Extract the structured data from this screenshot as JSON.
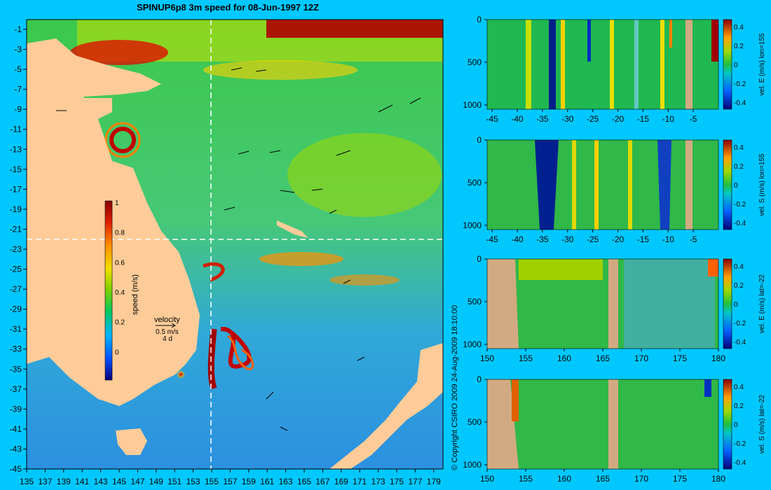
{
  "title": "SPINUP6p8 3m speed for 08-Jun-1997 12Z",
  "copyright": "© Copyright CSIRO 2009   24-Aug-2009 18:10:00",
  "colors": {
    "background": "#00c8ff",
    "land": "#ffcc99",
    "section_land": "#d2aa82"
  },
  "main_map": {
    "lon_ticks": [
      "135",
      "137",
      "139",
      "141",
      "143",
      "145",
      "147",
      "149",
      "151",
      "153",
      "155",
      "157",
      "159",
      "161",
      "163",
      "165",
      "167",
      "169",
      "171",
      "173",
      "175",
      "177",
      "179"
    ],
    "lat_ticks": [
      "-1",
      "-3",
      "-5",
      "-7",
      "-9",
      "-11",
      "-13",
      "-15",
      "-17",
      "-19",
      "-21",
      "-23",
      "-25",
      "-27",
      "-29",
      "-31",
      "-33",
      "-35",
      "-37",
      "-39",
      "-41",
      "-43",
      "-45"
    ],
    "lon_range": [
      135,
      180
    ],
    "lat_range": [
      -45,
      0
    ],
    "section_lon": 155,
    "section_lat": -22,
    "colorbar": {
      "label": "speed (m/s)",
      "ticks": [
        "1",
        "0.8",
        "0.6",
        "0.4",
        "0.2",
        "0"
      ],
      "range": [
        -0.2,
        1.0
      ]
    },
    "velocity_legend": {
      "title": "velocity",
      "scale": "0.5 m/s",
      "interval": "4 d"
    }
  },
  "sections": [
    {
      "id": "lon155-east",
      "label": "vel. E (m/s) lon=155",
      "x_ticks": [
        "-45",
        "-40",
        "-35",
        "-30",
        "-25",
        "-20",
        "-15",
        "-10",
        "-5"
      ],
      "x_range": [
        -46,
        0
      ],
      "y_ticks": [
        "0",
        "500",
        "1000"
      ],
      "colorbar_ticks": [
        "0.4",
        "0.2",
        "0",
        "-0.2",
        "-0.4"
      ]
    },
    {
      "id": "lon155-south",
      "label": "vel. S (m/s) lon=155",
      "x_ticks": [
        "-45",
        "-40",
        "-35",
        "-30",
        "-25",
        "-20",
        "-15",
        "-10",
        "-5"
      ],
      "x_range": [
        -46,
        0
      ],
      "y_ticks": [
        "0",
        "500",
        "1000"
      ],
      "colorbar_ticks": [
        "0.4",
        "0.2",
        "0",
        "-0.2",
        "-0.4"
      ]
    },
    {
      "id": "lat-22-east",
      "label": "vel. E (m/s) lat=-22",
      "x_ticks": [
        "150",
        "155",
        "160",
        "165",
        "170",
        "175",
        "180"
      ],
      "x_range": [
        150,
        180
      ],
      "y_ticks": [
        "0",
        "500",
        "1000"
      ],
      "colorbar_ticks": [
        "0.4",
        "0.2",
        "0",
        "-0.2",
        "-0.4"
      ]
    },
    {
      "id": "lat-22-south",
      "label": "vel. S (m/s) lat=-22",
      "x_ticks": [
        "150",
        "155",
        "160",
        "165",
        "170",
        "175",
        "180"
      ],
      "x_range": [
        150,
        180
      ],
      "y_ticks": [
        "0",
        "500",
        "1000"
      ],
      "colorbar_ticks": [
        "0.4",
        "0.2",
        "0",
        "-0.2",
        "-0.4"
      ]
    }
  ]
}
